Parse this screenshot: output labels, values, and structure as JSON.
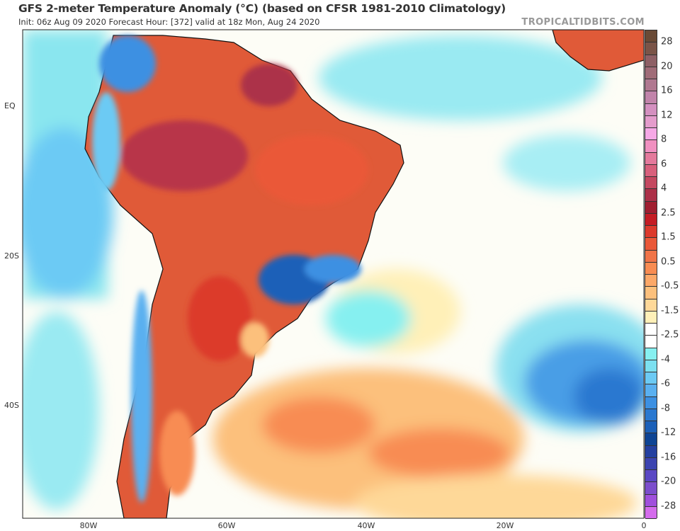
{
  "header": {
    "title": "GFS 2-meter Temperature Anomaly (°C) (based on CFSR 1981-2010 Climatology)",
    "subtitle": "Init: 06z Aug 09 2020   Forecast Hour: [372]   valid at 18z Mon, Aug 24 2020",
    "watermark": "TROPICALTIDBITS.COM"
  },
  "map": {
    "variable": "2-meter temperature anomaly",
    "units": "°C",
    "lat_labels": [
      "EQ",
      "20S",
      "40S"
    ],
    "lon_labels": [
      "80W",
      "60W",
      "40W",
      "20W",
      "0"
    ]
  },
  "colorbar": {
    "labels": [
      "28",
      "20",
      "16",
      "12",
      "8",
      "6",
      "4",
      "2.5",
      "1.5",
      "0.5",
      "-0.5",
      "-1.5",
      "-2.5",
      "-4",
      "-6",
      "-8",
      "-12",
      "-16",
      "-20",
      "-28"
    ],
    "colors": [
      "#6a4a36",
      "#7a5448",
      "#8e6066",
      "#a06c78",
      "#b07890",
      "#c184aa",
      "#d490c0",
      "#e49ccc",
      "#f6a8e6",
      "#f090c0",
      "#e47a9c",
      "#d8607c",
      "#c44860",
      "#ac3048",
      "#a01e30",
      "#c41c24",
      "#dc3a2c",
      "#ea5838",
      "#f07448",
      "#f88c52",
      "#fca868",
      "#fcc07c",
      "#fed898",
      "#fff0b8",
      "#ffffff",
      "#ffffff",
      "#86f0f0",
      "#7ce0f0",
      "#6ccaf4",
      "#5ab0f0",
      "#3c90e2",
      "#2a78d0",
      "#1c60b8",
      "#0e4494",
      "#2440a0",
      "#3c44b0",
      "#5a48c4",
      "#7c4ecc",
      "#a050dc",
      "#d46cec"
    ]
  }
}
